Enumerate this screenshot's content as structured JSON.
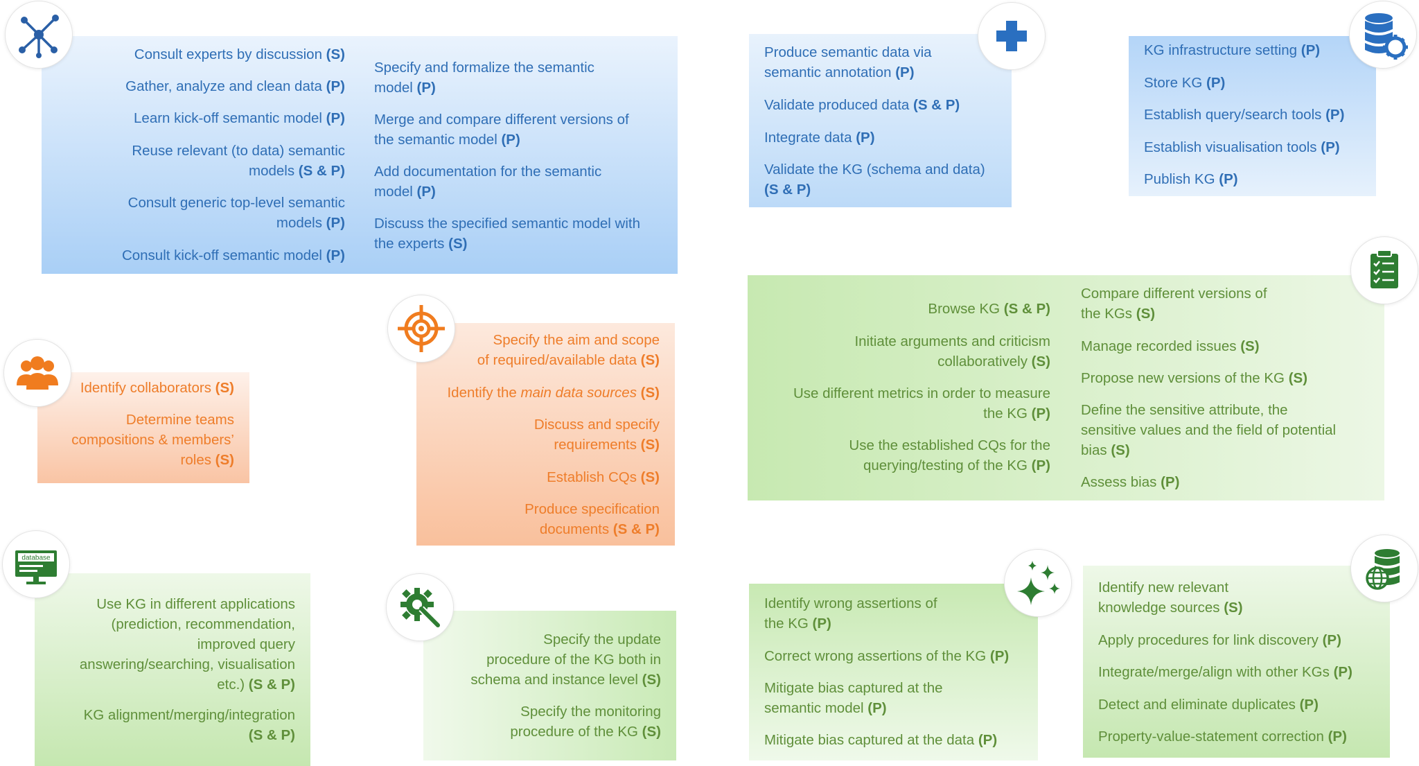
{
  "colors": {
    "blue": "#2f6eb5",
    "orange": "#ee7d2a",
    "green": "#5f8f3a"
  },
  "panels": {
    "modelling_left": {
      "icon": "network-icon",
      "items": [
        {
          "line1": "Consult experts by discussion",
          "tag": "(S)"
        },
        {
          "line1": "Gather, analyze and clean data",
          "tag": "(P)"
        },
        {
          "line1": "Learn kick-off semantic model",
          "tag": "(P)"
        },
        {
          "line1": "Reuse relevant (to data) semantic",
          "line2": "models",
          "tag": "(S & P)"
        },
        {
          "line1": "Consult generic top-level semantic",
          "line2": "models",
          "tag": "(P)"
        },
        {
          "line1": "Consult kick-off semantic model",
          "tag": "(P)"
        }
      ]
    },
    "modelling_right": {
      "items": [
        {
          "line1": "Specify and formalize the semantic",
          "line2": "model",
          "tag": "(P)"
        },
        {
          "line1": "Merge and compare different versions of",
          "line2": "the semantic model",
          "tag": "(P)"
        },
        {
          "line1": "Add documentation for the semantic",
          "line2": "model",
          "tag": "(P)"
        },
        {
          "line1": "Discuss the specified semantic model  with",
          "line2": "the experts",
          "tag": "(S)"
        }
      ]
    },
    "population": {
      "icon": "plus-icon",
      "items": [
        {
          "line1": "Produce semantic data via",
          "line2": "semantic annotation",
          "tag": "(P)"
        },
        {
          "line1": "Validate produced data",
          "tag": "(S & P)"
        },
        {
          "line1": "Integrate data",
          "tag": "(P)"
        },
        {
          "line1": "Validate the KG (schema and data)",
          "line2": "",
          "tag": "(S & P)"
        }
      ]
    },
    "deployment": {
      "icon": "database-gear-icon",
      "items": [
        {
          "line1": "KG infrastructure setting",
          "tag": "(P)"
        },
        {
          "line1": "Store KG",
          "tag": "(P)"
        },
        {
          "line1": "Establish query/search tools",
          "tag": "(P)"
        },
        {
          "line1": "Establish visualisation tools",
          "tag": "(P)"
        },
        {
          "line1": "Publish KG",
          "tag": "(P)"
        }
      ]
    },
    "collaborators": {
      "icon": "people-icon",
      "items": [
        {
          "line1": "Identify collaborators",
          "tag": "(S)"
        },
        {
          "line1": "Determine teams",
          "line2": "compositions & members’",
          "line3": "roles",
          "tag": "(S)"
        }
      ]
    },
    "specification": {
      "icon": "target-icon",
      "items": [
        {
          "line1": "Specify the aim and scope",
          "line2": "of  required/available data",
          "tag": "(S)"
        },
        {
          "pre": "Identify the ",
          "em": "main data sources",
          "tag": "(S)"
        },
        {
          "line1": "Discuss and specify",
          "line2": "requirements",
          "tag": "(S)"
        },
        {
          "line1": "Establish CQs",
          "tag": "(S)"
        },
        {
          "line1": "Produce specification",
          "line2": "documents",
          "tag": "(S & P)"
        }
      ]
    },
    "evaluation_left": {
      "icon": "clipboard-checklist-icon",
      "items": [
        {
          "line1": "Browse KG",
          "tag": "(S & P)"
        },
        {
          "line1": "Initiate arguments and criticism",
          "line2": "collaboratively",
          "tag": "(S)"
        },
        {
          "line1": "Use different metrics in order to measure",
          "line2": "the KG",
          "tag": "(P)"
        },
        {
          "line1": "Use the established CQs for the",
          "line2": "querying/testing of the KG",
          "tag": "(P)"
        }
      ]
    },
    "evaluation_right": {
      "items": [
        {
          "line1": "Compare different versions of",
          "line2": "the KGs",
          "tag": "(S)"
        },
        {
          "line1": "Manage recorded issues",
          "tag": "(S)"
        },
        {
          "line1": "Propose new versions of the KG",
          "tag": "(S)"
        },
        {
          "line1": "Define the sensitive attribute, the",
          "line2": "sensitive values and the field of potential",
          "line3": "bias",
          "tag": "(S)"
        },
        {
          "line1": "Assess bias",
          "tag": "(P)"
        }
      ]
    },
    "exploitation": {
      "icon": "database-monitor-icon",
      "icon_label": "database",
      "items": [
        {
          "line1": "Use KG in different applications",
          "line2": "(prediction, recommendation,",
          "line3": "improved query",
          "line4": "answering/searching, visualisation",
          "line5": "etc.)",
          "tag": "(S & P)"
        },
        {
          "line1": "KG alignment/merging/integration",
          "line2": "",
          "tag": "(S & P)"
        }
      ]
    },
    "maintenance": {
      "icon": "gear-wrench-icon",
      "items": [
        {
          "line1": "Specify the update",
          "line2": "procedure of the KG both in",
          "line3": "schema and instance level",
          "tag": "(S)"
        },
        {
          "line1": "Specify the monitoring",
          "line2": "procedure of the KG",
          "tag": "(S)"
        }
      ]
    },
    "curation": {
      "icon": "sparkles-icon",
      "items": [
        {
          "line1": "Identify wrong assertions of",
          "line2": "the KG",
          "tag": "(P)"
        },
        {
          "line1": "Correct wrong assertions of the KG",
          "tag": "(P)"
        },
        {
          "line1": "Mitigate bias captured at the",
          "line2": "semantic model",
          "tag": "(P)"
        },
        {
          "line1": "Mitigate bias captured at the data",
          "tag": "(P)"
        }
      ]
    },
    "enrichment": {
      "icon": "database-globe-icon",
      "items": [
        {
          "line1": "Identify new relevant",
          "line2": "knowledge sources",
          "tag": "(S)"
        },
        {
          "line1": "Apply procedures for link discovery",
          "tag": "(P)"
        },
        {
          "line1": "Integrate/merge/align with other KGs",
          "tag": "(P)"
        },
        {
          "line1": "Detect and eliminate duplicates",
          "tag": "(P)"
        },
        {
          "line1": "Property-value-statement correction",
          "tag": "(P)"
        }
      ]
    }
  }
}
